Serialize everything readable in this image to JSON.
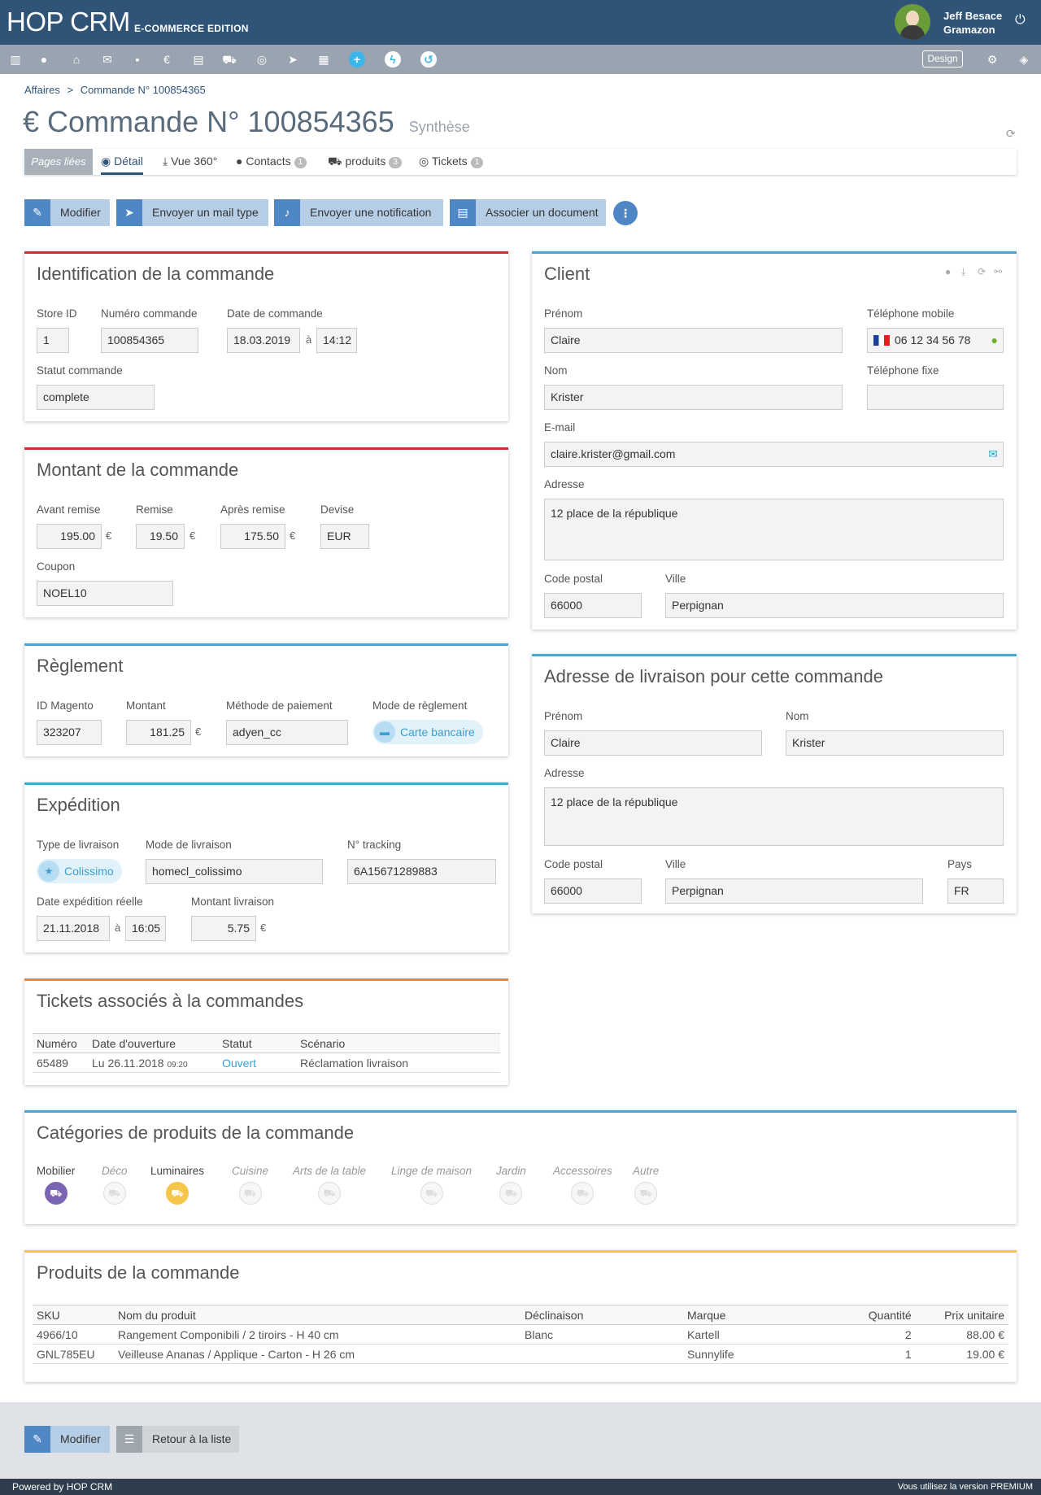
{
  "app": {
    "logo": "HOP CRM",
    "edition": "E-COMMERCE EDITION",
    "user_name": "Jeff Besace",
    "user_company": "Gramazon",
    "design_label": "Design"
  },
  "icons": [
    "chart-icon",
    "user-icon",
    "bank-icon",
    "chat-icon",
    "note-icon",
    "euro-icon",
    "document-icon",
    "cart-icon",
    "lifebuoy-icon",
    "send-icon",
    "calendar-icon",
    "plus-icon",
    "bolt-icon",
    "history-icon"
  ],
  "breadcrumb": {
    "root": "Affaires",
    "sep": ">",
    "current": "Commande N° 100854365"
  },
  "page": {
    "title": "Commande N° 100854365",
    "subtitle": "Synthèse",
    "currency_symbol": "€"
  },
  "tabs": {
    "linked": "Pages liées",
    "items": [
      {
        "label": "Détail"
      },
      {
        "label": "Vue 360°"
      },
      {
        "label": "Contacts",
        "count": "1"
      },
      {
        "label": "produits",
        "count": "3"
      },
      {
        "label": "Tickets",
        "count": "1"
      }
    ]
  },
  "actions": {
    "edit": "Modifier",
    "mail": "Envoyer un mail type",
    "notify": "Envoyer une notification",
    "doc": "Associer un document"
  },
  "ident": {
    "title": "Identification de la commande",
    "store_label": "Store ID",
    "store": "1",
    "num_label": "Numéro commande",
    "num": "100854365",
    "date_label": "Date de commande",
    "date": "18.03.2019",
    "at": "à",
    "time": "14:12",
    "status_label": "Statut commande",
    "status": "complete"
  },
  "montant": {
    "title": "Montant de la commande",
    "before_label": "Avant remise",
    "before": "195.00",
    "disc_label": "Remise",
    "disc": "19.50",
    "after_label": "Après remise",
    "after": "175.50",
    "cur_label": "Devise",
    "cur": "EUR",
    "coupon_label": "Coupon",
    "coupon": "NOEL10",
    "unit": "€"
  },
  "reglement": {
    "title": "Règlement",
    "id_label": "ID Magento",
    "id": "323207",
    "amount_label": "Montant",
    "amount": "181.25",
    "method_label": "Méthode de paiement",
    "method": "adyen_cc",
    "mode_label": "Mode de règlement",
    "mode": "Carte bancaire"
  },
  "expedition": {
    "title": "Expédition",
    "type_label": "Type de livraison",
    "type": "Colissimo",
    "mode_label": "Mode de livraison",
    "mode": "homecl_colissimo",
    "track_label": "N° tracking",
    "track": "6A15671289883",
    "date_label": "Date expédition réelle",
    "date": "21.11.2018",
    "time": "16:05",
    "amount_label": "Montant livraison",
    "amount": "5.75"
  },
  "tickets": {
    "title": "Tickets associés à la commandes",
    "headers": [
      "Numéro",
      "Date d'ouverture",
      "Statut",
      "Scénario"
    ],
    "row": {
      "num": "65489",
      "date": "Lu 26.11.2018",
      "time": "09:20",
      "status": "Ouvert",
      "scenario": "Réclamation livraison"
    }
  },
  "client": {
    "title": "Client",
    "first_label": "Prénom",
    "first": "Claire",
    "mobile_label": "Téléphone mobile",
    "mobile": "06 12 34 56 78",
    "last_label": "Nom",
    "last": "Krister",
    "phone_label": "Téléphone fixe",
    "phone": "",
    "email_label": "E-mail",
    "email": "claire.krister@gmail.com",
    "addr_label": "Adresse",
    "addr": "12 place de la république",
    "zip_label": "Code postal",
    "zip": "66000",
    "city_label": "Ville",
    "city": "Perpignan"
  },
  "livraison": {
    "title": "Adresse de livraison pour cette commande",
    "first_label": "Prénom",
    "first": "Claire",
    "last_label": "Nom",
    "last": "Krister",
    "addr_label": "Adresse",
    "addr": "12 place de la république",
    "zip_label": "Code postal",
    "zip": "66000",
    "city_label": "Ville",
    "city": "Perpignan",
    "country_label": "Pays",
    "country": "FR"
  },
  "categories": {
    "title": "Catégories de produits de la commande",
    "items": [
      {
        "label": "Mobilier",
        "active": true,
        "color": "#7b64b4"
      },
      {
        "label": "Déco"
      },
      {
        "label": "Luminaires",
        "active": true,
        "color": "#f5c64a"
      },
      {
        "label": "Cuisine"
      },
      {
        "label": "Arts de la table"
      },
      {
        "label": "Linge de maison"
      },
      {
        "label": "Jardin"
      },
      {
        "label": "Accessoires"
      },
      {
        "label": "Autre"
      }
    ]
  },
  "produits": {
    "title": "Produits de la commande",
    "headers": [
      "SKU",
      "Nom du produit",
      "Déclinaison",
      "Marque",
      "Quantité",
      "Prix unitaire"
    ],
    "rows": [
      [
        "4966/10",
        "Rangement Componibili / 2 tiroirs - H 40 cm",
        "Blanc",
        "Kartell",
        "2",
        "88.00 €"
      ],
      [
        "GNL785EU",
        "Veilleuse Ananas / Applique - Carton - H 26 cm",
        "",
        "Sunnylife",
        "1",
        "19.00 €"
      ]
    ]
  },
  "bottom": {
    "edit": "Modifier",
    "back": "Retour à la liste"
  },
  "footer": {
    "left": "Powered by HOP CRM",
    "right": "Vous utilisez la version PREMIUM"
  },
  "colors": {
    "topbar": "#2f5478",
    "accent": "#4e86c6",
    "panel_blue": "#4aa5d8",
    "panel_red": "#c93232",
    "panel_orange": "#f0872a",
    "panel_yellow": "#f5c64a"
  }
}
